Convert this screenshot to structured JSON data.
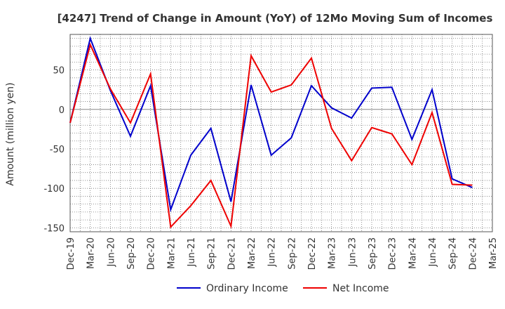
{
  "chart_data": {
    "type": "line",
    "title": "[4247]  Trend of Change in Amount (YoY) of 12Mo Moving Sum of Incomes",
    "xlabel": "",
    "ylabel": "Amount (million yen)",
    "categories": [
      "Dec-19",
      "Mar-20",
      "Jun-20",
      "Sep-20",
      "Dec-20",
      "Mar-21",
      "Jun-21",
      "Sep-21",
      "Dec-21",
      "Mar-22",
      "Jun-22",
      "Sep-22",
      "Dec-22",
      "Mar-23",
      "Jun-23",
      "Sep-23",
      "Dec-23",
      "Mar-24",
      "Jun-24",
      "Sep-24",
      "Dec-24",
      "Mar-25"
    ],
    "ylim": [
      -155,
      95
    ],
    "yticks": [
      50,
      0,
      -50,
      -100,
      -150
    ],
    "grid": true,
    "legend_position": "bottom",
    "series": [
      {
        "name": "Ordinary Income",
        "color": "#0000cc",
        "values": [
          -17,
          90,
          24,
          -34,
          30,
          -127,
          -58,
          -24,
          -117,
          31,
          -58,
          -36,
          30,
          2,
          -11,
          27,
          28,
          -38,
          25,
          -88,
          -99,
          null
        ]
      },
      {
        "name": "Net Income",
        "color": "#ee0000",
        "values": [
          -17,
          82,
          26,
          -17,
          45,
          -149,
          -122,
          -90,
          -148,
          68,
          22,
          31,
          65,
          -24,
          -65,
          -23,
          -31,
          -70,
          -4,
          -95,
          -96,
          null
        ]
      }
    ]
  }
}
